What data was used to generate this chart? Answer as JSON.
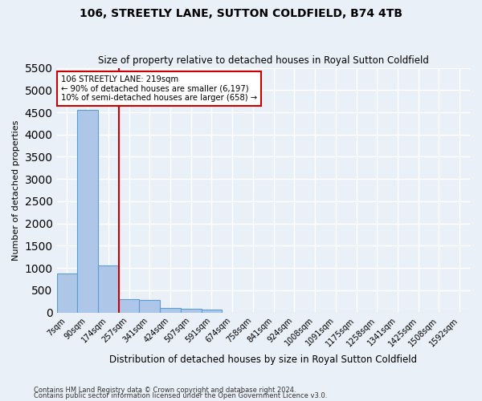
{
  "title": "106, STREETLY LANE, SUTTON COLDFIELD, B74 4TB",
  "subtitle": "Size of property relative to detached houses in Royal Sutton Coldfield",
  "xlabel": "Distribution of detached houses by size in Royal Sutton Coldfield",
  "ylabel": "Number of detached properties",
  "footer_line1": "Contains HM Land Registry data © Crown copyright and database right 2024.",
  "footer_line2": "Contains public sector information licensed under the Open Government Licence v3.0.",
  "bin_labels": [
    "7sqm",
    "90sqm",
    "174sqm",
    "257sqm",
    "341sqm",
    "424sqm",
    "507sqm",
    "591sqm",
    "674sqm",
    "758sqm",
    "841sqm",
    "924sqm",
    "1008sqm",
    "1091sqm",
    "1175sqm",
    "1258sqm",
    "1341sqm",
    "1425sqm",
    "1508sqm",
    "1592sqm"
  ],
  "bar_heights": [
    880,
    4560,
    1060,
    290,
    280,
    100,
    85,
    60,
    0,
    0,
    0,
    0,
    0,
    0,
    0,
    0,
    0,
    0,
    0,
    0
  ],
  "bar_color": "#aec6e8",
  "bar_edge_color": "#5a9fd4",
  "highlight_bin_index": 2,
  "red_line_x": 2,
  "annotation_text_line1": "106 STREETLY LANE: 219sqm",
  "annotation_text_line2": "← 90% of detached houses are smaller (6,197)",
  "annotation_text_line3": "10% of semi-detached houses are larger (658) →",
  "ylim": [
    0,
    5500
  ],
  "yticks": [
    0,
    500,
    1000,
    1500,
    2000,
    2500,
    3000,
    3500,
    4000,
    4500,
    5000,
    5500
  ],
  "background_color": "#eaf0f8",
  "plot_background_color": "#eaf0f8",
  "grid_color": "#ffffff",
  "annotation_box_color": "#ffffff",
  "annotation_box_edge_color": "#cc0000",
  "red_line_color": "#cc0000"
}
